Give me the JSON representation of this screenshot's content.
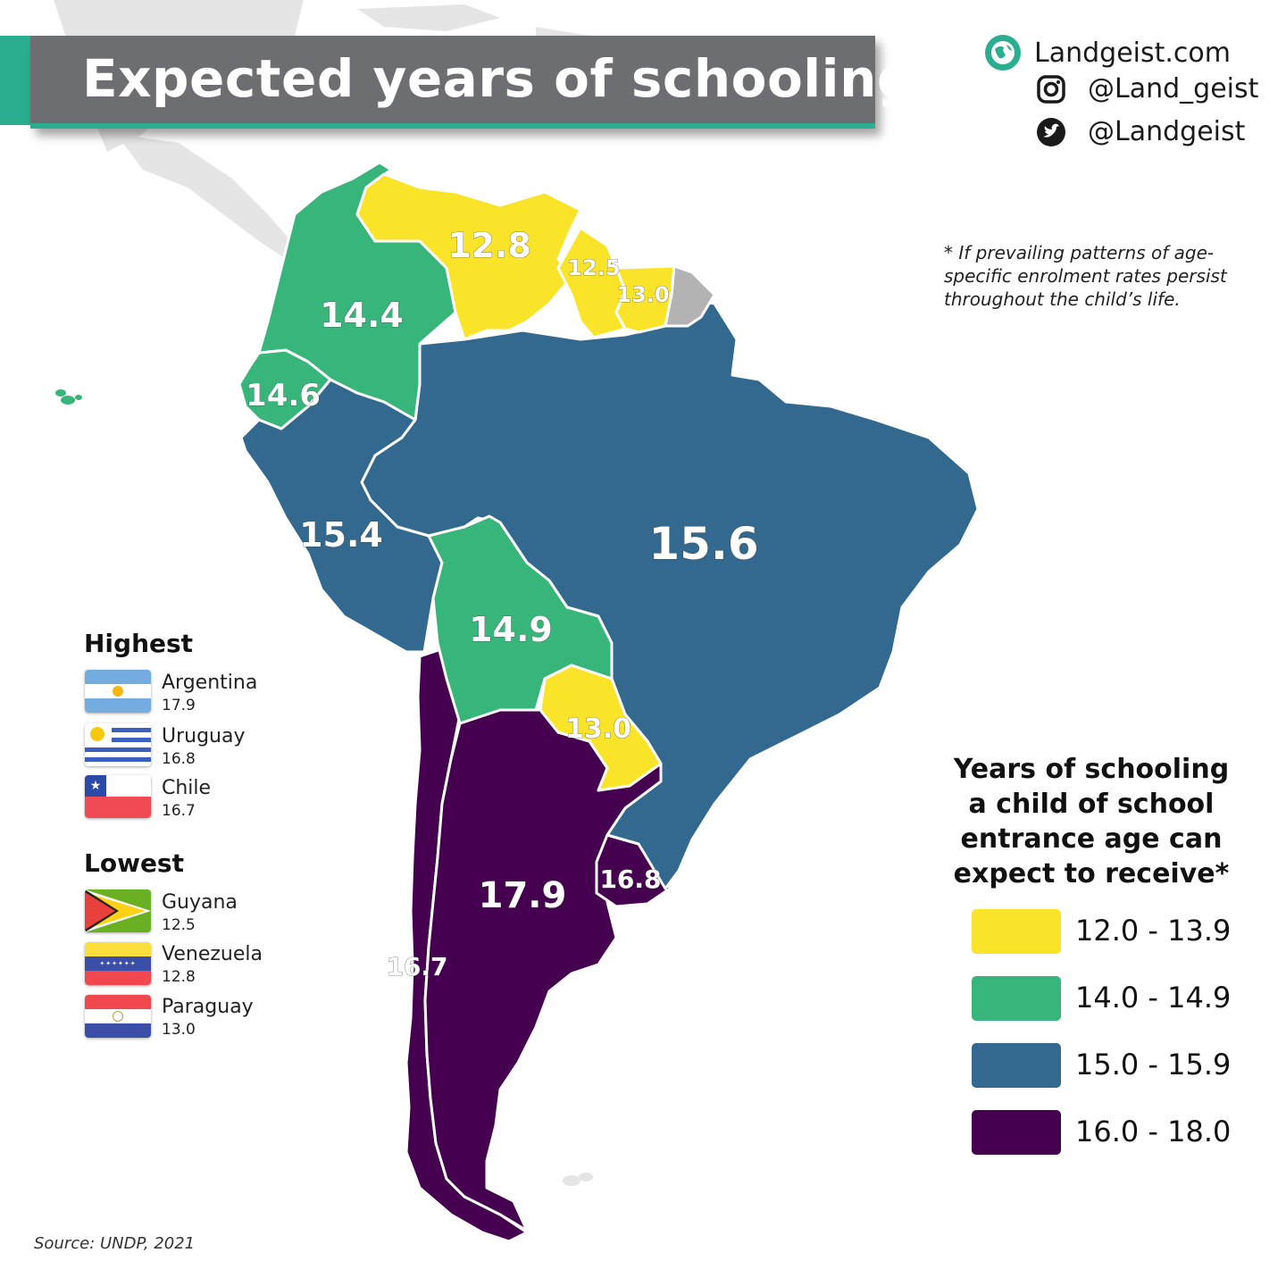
{
  "title": "Expected years of schooling",
  "brand": {
    "website": "Landgeist.com",
    "instagram": "@Land_geist",
    "twitter": "@Landgeist",
    "icons": [
      "globe-icon",
      "instagram-icon",
      "twitter-icon"
    ]
  },
  "note": "* If prevailing patterns of age-specific enrolment rates persist throughout the child’s life.",
  "legend": {
    "title": "Years of schooling a child of school entrance age can expect to receive*",
    "items": [
      {
        "range": "12.0 - 13.9",
        "color": "#f9e42a"
      },
      {
        "range": "14.0 - 14.9",
        "color": "#37b57a"
      },
      {
        "range": "15.0 - 15.9",
        "color": "#33698e"
      },
      {
        "range": "16.0 - 18.0",
        "color": "#45004f"
      }
    ],
    "no_data_color": "#b3b3b3"
  },
  "highest": {
    "heading": "Highest",
    "items": [
      {
        "country": "Argentina",
        "value": "17.9"
      },
      {
        "country": "Uruguay",
        "value": "16.8"
      },
      {
        "country": "Chile",
        "value": "16.7"
      }
    ]
  },
  "lowest": {
    "heading": "Lowest",
    "items": [
      {
        "country": "Guyana",
        "value": "12.5"
      },
      {
        "country": "Venezuela",
        "value": "12.8"
      },
      {
        "country": "Paraguay",
        "value": "13.0"
      }
    ]
  },
  "map_values": {
    "venezuela": "12.8",
    "guyana": "12.5",
    "suriname": "13.0",
    "colombia": "14.4",
    "ecuador": "14.6",
    "peru": "15.4",
    "brazil": "15.6",
    "bolivia": "14.9",
    "paraguay": "13.0",
    "argentina": "17.9",
    "uruguay": "16.8",
    "chile": "16.7"
  },
  "source": "Source: UNDP, 2021"
}
